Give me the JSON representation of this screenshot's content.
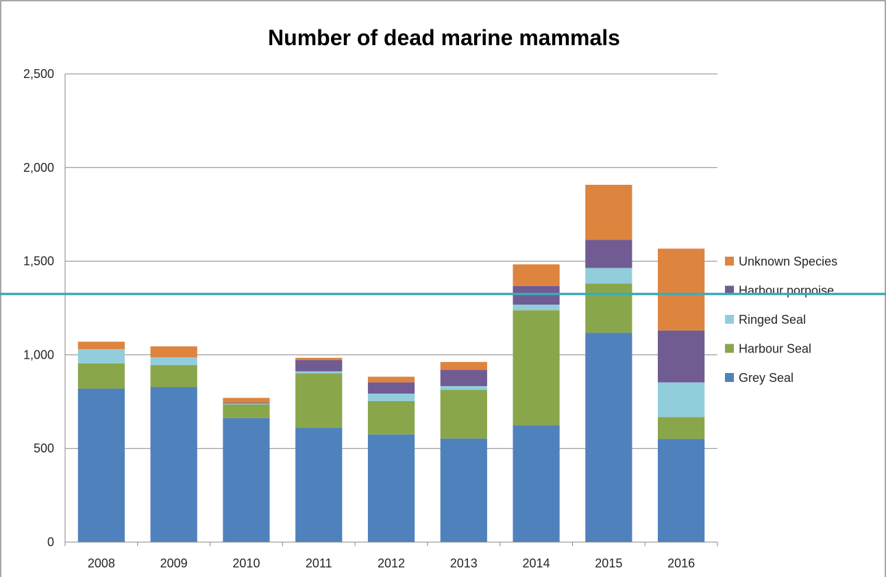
{
  "chart_data": {
    "type": "bar",
    "stacked": true,
    "title": "Number of dead marine mammals",
    "xlabel": "",
    "ylabel": "",
    "ylim": [
      0,
      2500
    ],
    "y_ticks": [
      0,
      500,
      1000,
      1500,
      2000,
      2500
    ],
    "y_tick_labels": [
      "0",
      "500",
      "1,000",
      "1,500",
      "2,000",
      "2,500"
    ],
    "grid": true,
    "legend_position": "right",
    "categories": [
      "2008",
      "2009",
      "2010",
      "2011",
      "2012",
      "2013",
      "2014",
      "2015",
      "2016"
    ],
    "series": [
      {
        "name": "Grey Seal",
        "color": "#4f81bd",
        "values": [
          820,
          828,
          662,
          610,
          575,
          553,
          623,
          1118,
          550
        ]
      },
      {
        "name": "Harbour Seal",
        "color": "#8aa64b",
        "values": [
          135,
          117,
          73,
          292,
          178,
          260,
          615,
          263,
          118
        ]
      },
      {
        "name": "Ringed Seal",
        "color": "#92cddc",
        "values": [
          75,
          42,
          5,
          10,
          40,
          20,
          30,
          83,
          185
        ]
      },
      {
        "name": "Harbour porpoise",
        "color": "#715b93",
        "values": [
          0,
          0,
          5,
          60,
          60,
          87,
          100,
          150,
          277
        ]
      },
      {
        "name": "Unknown Species",
        "color": "#dd843f",
        "values": [
          40,
          58,
          25,
          12,
          30,
          42,
          115,
          294,
          437
        ]
      }
    ],
    "reference_line": {
      "value": 1325,
      "color": "#3aabb8"
    }
  }
}
